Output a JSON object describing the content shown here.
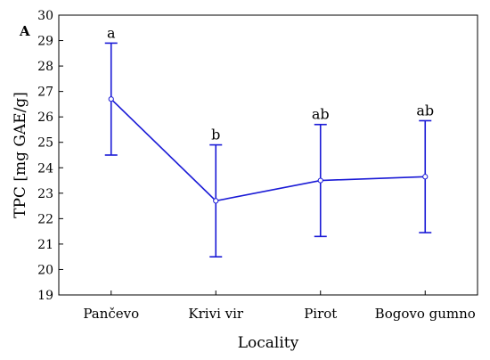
{
  "chart_data": {
    "type": "line",
    "panel_label": "A",
    "xlabel": "Locality",
    "ylabel": "TPC [mg GAE/g]",
    "ylim": [
      19,
      30
    ],
    "yticks": [
      19,
      20,
      21,
      22,
      23,
      24,
      25,
      26,
      27,
      28,
      29,
      30
    ],
    "categories": [
      "Pančevo",
      "Krivi vir",
      "Pirot",
      "Bogovo gumno"
    ],
    "series": [
      {
        "values": [
          26.7,
          22.7,
          23.5,
          23.65
        ],
        "lower": [
          24.5,
          20.5,
          21.3,
          21.45
        ],
        "upper": [
          28.9,
          24.9,
          25.7,
          25.85
        ],
        "letters": [
          "a",
          "b",
          "ab",
          "ab"
        ],
        "color": "#1a1ad6"
      }
    ],
    "grid": false,
    "legend": "none"
  }
}
